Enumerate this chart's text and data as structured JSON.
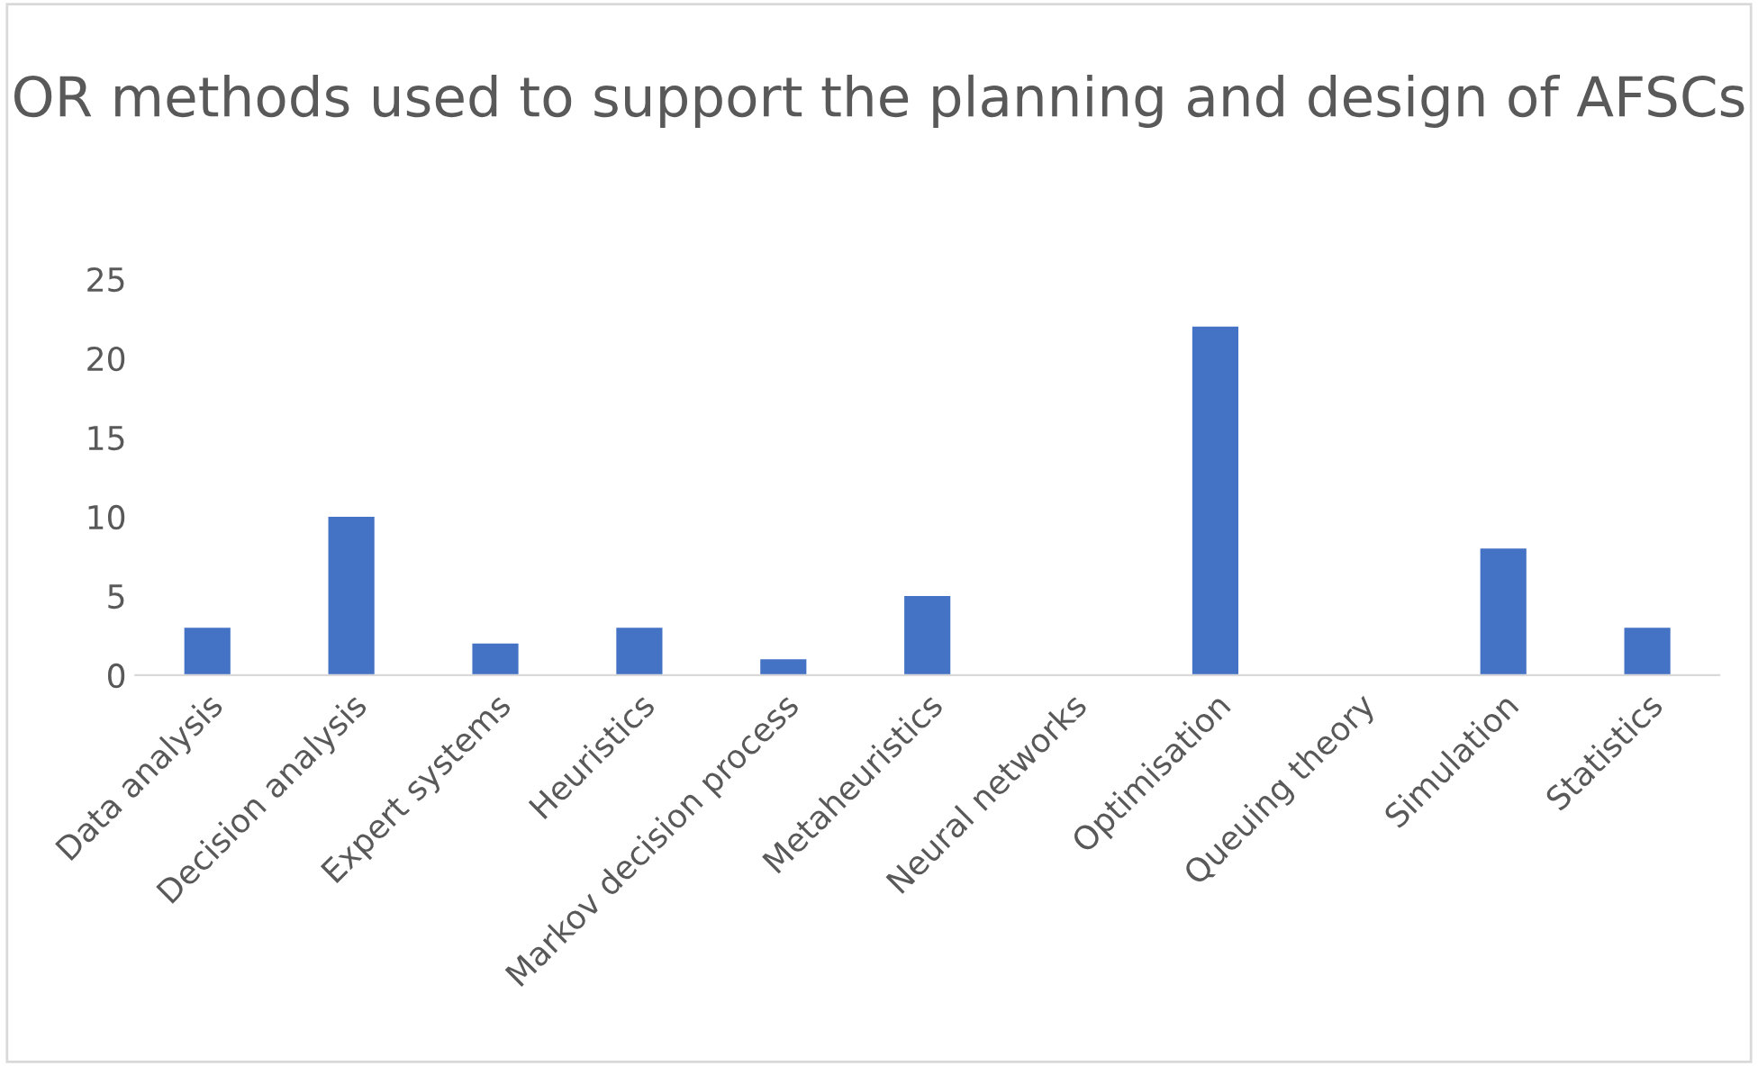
{
  "chart_data": {
    "type": "bar",
    "title": "OR methods used to support the planning and design of AFSCs",
    "categories": [
      "Data analysis",
      "Decision analysis",
      "Expert systems",
      "Heuristics",
      "Markov decision process",
      "Metaheuristics",
      "Neural networks",
      "Optimisation",
      "Queuing theory",
      "Simulation",
      "Statistics"
    ],
    "values": [
      3,
      10,
      2,
      3,
      1,
      5,
      0,
      22,
      0,
      8,
      3
    ],
    "color": "#4472c4",
    "ylim": [
      0,
      25
    ],
    "yticks": [
      0,
      5,
      10,
      15,
      20,
      25
    ],
    "grid": false
  }
}
